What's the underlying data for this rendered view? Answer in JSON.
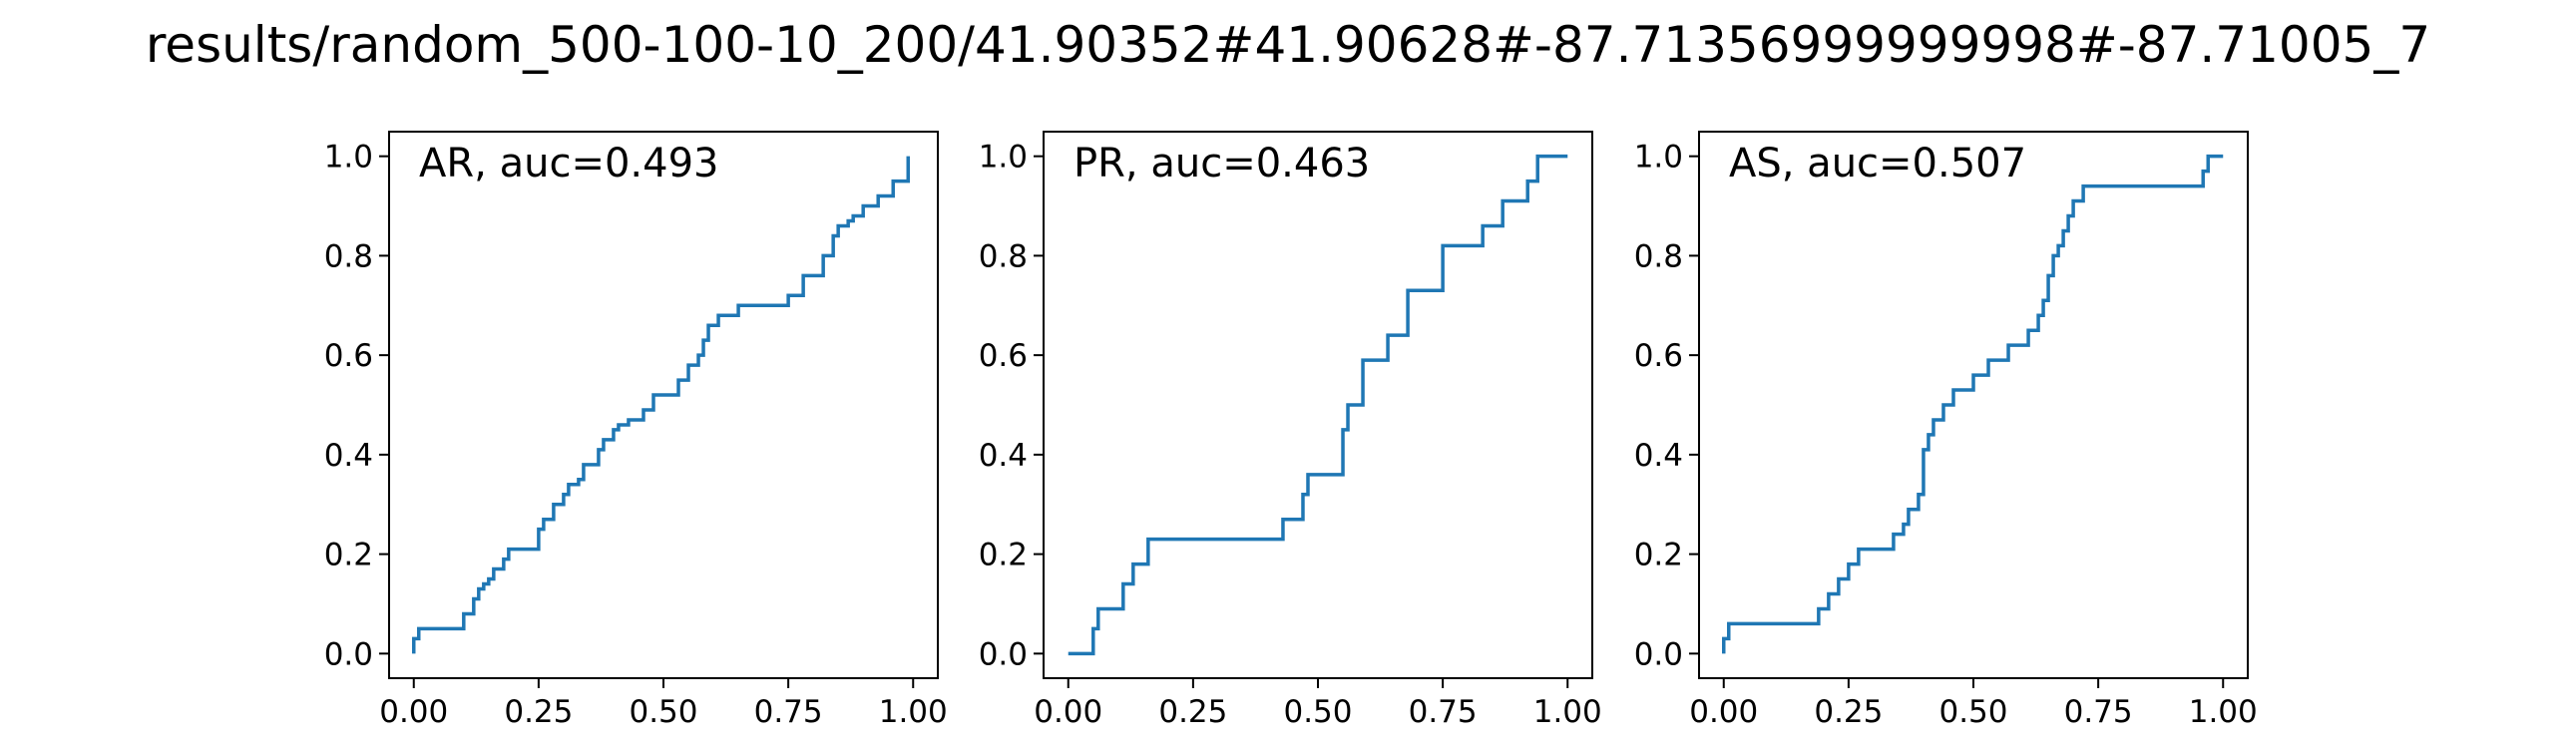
{
  "figure": {
    "suptitle": "results/random_500-100-10_200/41.90352#41.90628#-87.71356999999998#-87.71005_7",
    "line_color": "#1f77b4"
  },
  "chart_data": [
    {
      "type": "line",
      "title": "AR, auc=0.493",
      "xlim": [
        0,
        1
      ],
      "ylim": [
        0,
        1
      ],
      "xticks": [
        "0.00",
        "0.25",
        "0.50",
        "0.75",
        "1.00"
      ],
      "yticks": [
        "0.0",
        "0.2",
        "0.4",
        "0.6",
        "0.8",
        "1.0"
      ],
      "series": [
        {
          "x": [
            0.0,
            0.0,
            0.01,
            0.01,
            0.02,
            0.02,
            0.1,
            0.1,
            0.12,
            0.12,
            0.13,
            0.13,
            0.14,
            0.14,
            0.15,
            0.15,
            0.16,
            0.16,
            0.18,
            0.18,
            0.19,
            0.19,
            0.25,
            0.25,
            0.26,
            0.26,
            0.28,
            0.28,
            0.3,
            0.3,
            0.31,
            0.31,
            0.33,
            0.33,
            0.34,
            0.34,
            0.37,
            0.37,
            0.38,
            0.38,
            0.4,
            0.4,
            0.41,
            0.41,
            0.43,
            0.43,
            0.46,
            0.46,
            0.48,
            0.48,
            0.53,
            0.53,
            0.55,
            0.55,
            0.57,
            0.57,
            0.58,
            0.58,
            0.59,
            0.59,
            0.61,
            0.61,
            0.65,
            0.65,
            0.75,
            0.75,
            0.78,
            0.78,
            0.82,
            0.82,
            0.84,
            0.84,
            0.85,
            0.85,
            0.87,
            0.87,
            0.88,
            0.88,
            0.9,
            0.9,
            0.93,
            0.93,
            0.96,
            0.96,
            0.99,
            0.99
          ],
          "y": [
            0.0,
            0.03,
            0.03,
            0.05,
            0.05,
            0.05,
            0.05,
            0.08,
            0.08,
            0.11,
            0.11,
            0.13,
            0.13,
            0.14,
            0.14,
            0.15,
            0.15,
            0.17,
            0.17,
            0.19,
            0.19,
            0.21,
            0.21,
            0.25,
            0.25,
            0.27,
            0.27,
            0.3,
            0.3,
            0.32,
            0.32,
            0.34,
            0.34,
            0.35,
            0.35,
            0.38,
            0.38,
            0.41,
            0.41,
            0.43,
            0.43,
            0.45,
            0.45,
            0.46,
            0.46,
            0.47,
            0.47,
            0.49,
            0.49,
            0.52,
            0.52,
            0.55,
            0.55,
            0.58,
            0.58,
            0.6,
            0.6,
            0.63,
            0.63,
            0.66,
            0.66,
            0.68,
            0.68,
            0.7,
            0.7,
            0.72,
            0.72,
            0.76,
            0.76,
            0.8,
            0.8,
            0.84,
            0.84,
            0.86,
            0.86,
            0.87,
            0.87,
            0.88,
            0.88,
            0.9,
            0.9,
            0.92,
            0.92,
            0.95,
            0.95,
            1.0
          ]
        }
      ]
    },
    {
      "type": "line",
      "title": "PR, auc=0.463",
      "xlim": [
        0,
        1
      ],
      "ylim": [
        0,
        1
      ],
      "xticks": [
        "0.00",
        "0.25",
        "0.50",
        "0.75",
        "1.00"
      ],
      "yticks": [
        "0.0",
        "0.2",
        "0.4",
        "0.6",
        "0.8",
        "1.0"
      ],
      "series": [
        {
          "x": [
            0.0,
            0.05,
            0.05,
            0.06,
            0.06,
            0.08,
            0.08,
            0.11,
            0.11,
            0.13,
            0.13,
            0.16,
            0.16,
            0.43,
            0.43,
            0.47,
            0.47,
            0.48,
            0.48,
            0.55,
            0.55,
            0.56,
            0.56,
            0.59,
            0.59,
            0.64,
            0.64,
            0.68,
            0.68,
            0.75,
            0.75,
            0.83,
            0.83,
            0.87,
            0.87,
            0.92,
            0.92,
            0.94,
            0.94,
            1.0
          ],
          "y": [
            0.0,
            0.0,
            0.05,
            0.05,
            0.09,
            0.09,
            0.09,
            0.09,
            0.14,
            0.14,
            0.18,
            0.18,
            0.23,
            0.23,
            0.27,
            0.27,
            0.32,
            0.32,
            0.36,
            0.36,
            0.45,
            0.45,
            0.5,
            0.5,
            0.59,
            0.59,
            0.64,
            0.64,
            0.73,
            0.73,
            0.82,
            0.82,
            0.86,
            0.86,
            0.91,
            0.91,
            0.95,
            0.95,
            1.0,
            1.0
          ]
        }
      ]
    },
    {
      "type": "line",
      "title": "AS, auc=0.507",
      "xlim": [
        0,
        1
      ],
      "ylim": [
        0,
        1
      ],
      "xticks": [
        "0.00",
        "0.25",
        "0.50",
        "0.75",
        "1.00"
      ],
      "yticks": [
        "0.0",
        "0.2",
        "0.4",
        "0.6",
        "0.8",
        "1.0"
      ],
      "series": [
        {
          "x": [
            0.0,
            0.0,
            0.01,
            0.01,
            0.19,
            0.19,
            0.21,
            0.21,
            0.23,
            0.23,
            0.25,
            0.25,
            0.27,
            0.27,
            0.34,
            0.34,
            0.36,
            0.36,
            0.37,
            0.37,
            0.39,
            0.39,
            0.4,
            0.4,
            0.41,
            0.41,
            0.42,
            0.42,
            0.44,
            0.44,
            0.46,
            0.46,
            0.5,
            0.5,
            0.53,
            0.53,
            0.57,
            0.57,
            0.61,
            0.61,
            0.63,
            0.63,
            0.64,
            0.64,
            0.65,
            0.65,
            0.66,
            0.66,
            0.67,
            0.67,
            0.68,
            0.68,
            0.69,
            0.69,
            0.7,
            0.7,
            0.72,
            0.72,
            0.77,
            0.77,
            0.96,
            0.96,
            0.97,
            0.97,
            1.0
          ],
          "y": [
            0.0,
            0.03,
            0.03,
            0.06,
            0.06,
            0.09,
            0.09,
            0.12,
            0.12,
            0.15,
            0.15,
            0.18,
            0.18,
            0.21,
            0.21,
            0.24,
            0.24,
            0.26,
            0.26,
            0.29,
            0.29,
            0.32,
            0.32,
            0.41,
            0.41,
            0.44,
            0.44,
            0.47,
            0.47,
            0.5,
            0.5,
            0.53,
            0.53,
            0.56,
            0.56,
            0.59,
            0.59,
            0.62,
            0.62,
            0.65,
            0.65,
            0.68,
            0.68,
            0.71,
            0.71,
            0.76,
            0.76,
            0.8,
            0.8,
            0.82,
            0.82,
            0.85,
            0.85,
            0.88,
            0.88,
            0.91,
            0.91,
            0.94,
            0.94,
            0.94,
            0.94,
            0.97,
            0.97,
            1.0,
            1.0
          ]
        }
      ]
    }
  ]
}
